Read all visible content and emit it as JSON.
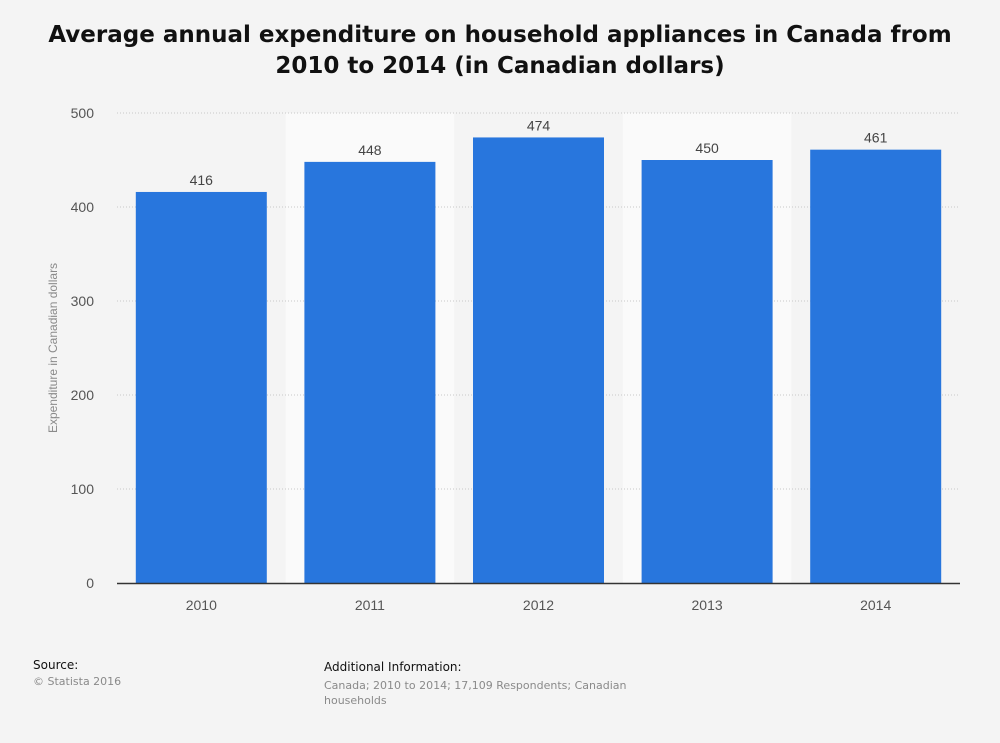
{
  "chart_data": {
    "type": "bar",
    "title": "Average annual expenditure on household appliances in Canada from 2010 to 2014 (in Canadian dollars)",
    "categories": [
      "2010",
      "2011",
      "2012",
      "2013",
      "2014"
    ],
    "values": [
      416,
      448,
      474,
      450,
      461
    ],
    "data_labels": [
      "416",
      "448",
      "474",
      "450",
      "461"
    ],
    "xlabel": "",
    "ylabel": "Expenditure in Canadian dollars",
    "ylim": [
      0,
      500
    ],
    "yticks": [
      0,
      100,
      200,
      300,
      400,
      500
    ],
    "ytick_labels": [
      "0",
      "100",
      "200",
      "300",
      "400",
      "500"
    ],
    "grid": true,
    "bar_color": "#2876dd"
  },
  "footer": {
    "source_label": "Source:",
    "source_text": "© Statista 2016",
    "info_label": "Additional Information:",
    "info_text": "Canada; 2010 to 2014; 17,109 Respondents; Canadian households"
  }
}
